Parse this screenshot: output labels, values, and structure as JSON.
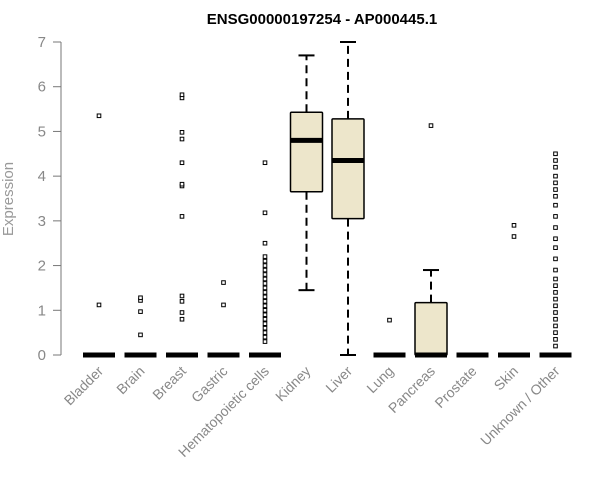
{
  "chart_data": {
    "type": "box",
    "title": "ENSG00000197254 - AP000445.1",
    "ylabel": "Expression",
    "xlabel": "",
    "ylim": [
      0,
      7
    ],
    "yticks": [
      0,
      1,
      2,
      3,
      4,
      5,
      6,
      7
    ],
    "box_fill": "#ede6cb",
    "categories": [
      "Bladder",
      "Brain",
      "Breast",
      "Gastric",
      "Hematopoietic cells",
      "Kidney",
      "Liver",
      "Lung",
      "Pancreas",
      "Prostate",
      "Skin",
      "Unknown / Other"
    ],
    "boxes": [
      {
        "q1": 0,
        "median": 0,
        "q3": 0,
        "whisker_low": 0,
        "whisker_high": 0,
        "outliers": [
          1.12,
          5.35
        ]
      },
      {
        "q1": 0,
        "median": 0,
        "q3": 0,
        "whisker_low": 0,
        "whisker_high": 0,
        "outliers": [
          0.45,
          0.97,
          1.22,
          1.28
        ]
      },
      {
        "q1": 0,
        "median": 0,
        "q3": 0,
        "whisker_low": 0,
        "whisker_high": 0,
        "outliers": [
          0.8,
          0.95,
          1.2,
          1.32,
          3.1,
          3.78,
          3.82,
          4.3,
          4.83,
          4.98,
          5.75,
          5.82
        ]
      },
      {
        "q1": 0,
        "median": 0,
        "q3": 0,
        "whisker_low": 0,
        "whisker_high": 0,
        "outliers": [
          1.12,
          1.62
        ]
      },
      {
        "q1": 0,
        "median": 0,
        "q3": 0,
        "whisker_low": 0,
        "whisker_high": 0,
        "outliers": [
          0.3,
          0.4,
          0.5,
          0.6,
          0.7,
          0.8,
          0.9,
          1.0,
          1.1,
          1.2,
          1.3,
          1.4,
          1.5,
          1.6,
          1.7,
          1.8,
          1.9,
          2.0,
          2.1,
          2.2,
          2.5,
          3.18,
          4.3
        ]
      },
      {
        "q1": 3.65,
        "median": 4.8,
        "q3": 5.43,
        "whisker_low": 1.45,
        "whisker_high": 6.7,
        "outliers": []
      },
      {
        "q1": 3.05,
        "median": 4.35,
        "q3": 5.28,
        "whisker_low": 0,
        "whisker_high": 7.0,
        "outliers": []
      },
      {
        "q1": 0,
        "median": 0,
        "q3": 0,
        "whisker_low": 0,
        "whisker_high": 0,
        "outliers": [
          0.78
        ]
      },
      {
        "q1": 0,
        "median": 0,
        "q3": 1.17,
        "whisker_low": 0,
        "whisker_high": 1.9,
        "outliers": [
          5.13
        ]
      },
      {
        "q1": 0,
        "median": 0,
        "q3": 0,
        "whisker_low": 0,
        "whisker_high": 0,
        "outliers": []
      },
      {
        "q1": 0,
        "median": 0,
        "q3": 0,
        "whisker_low": 0,
        "whisker_high": 0,
        "outliers": [
          2.65,
          2.9
        ]
      },
      {
        "q1": 0,
        "median": 0,
        "q3": 0,
        "whisker_low": 0,
        "whisker_high": 0,
        "outliers": [
          0.2,
          0.35,
          0.5,
          0.65,
          0.8,
          0.95,
          1.1,
          1.25,
          1.4,
          1.55,
          1.7,
          1.9,
          2.15,
          2.4,
          2.6,
          2.85,
          3.1,
          3.35,
          3.55,
          3.7,
          3.85,
          4.0,
          4.2,
          4.35,
          4.5
        ]
      }
    ]
  }
}
